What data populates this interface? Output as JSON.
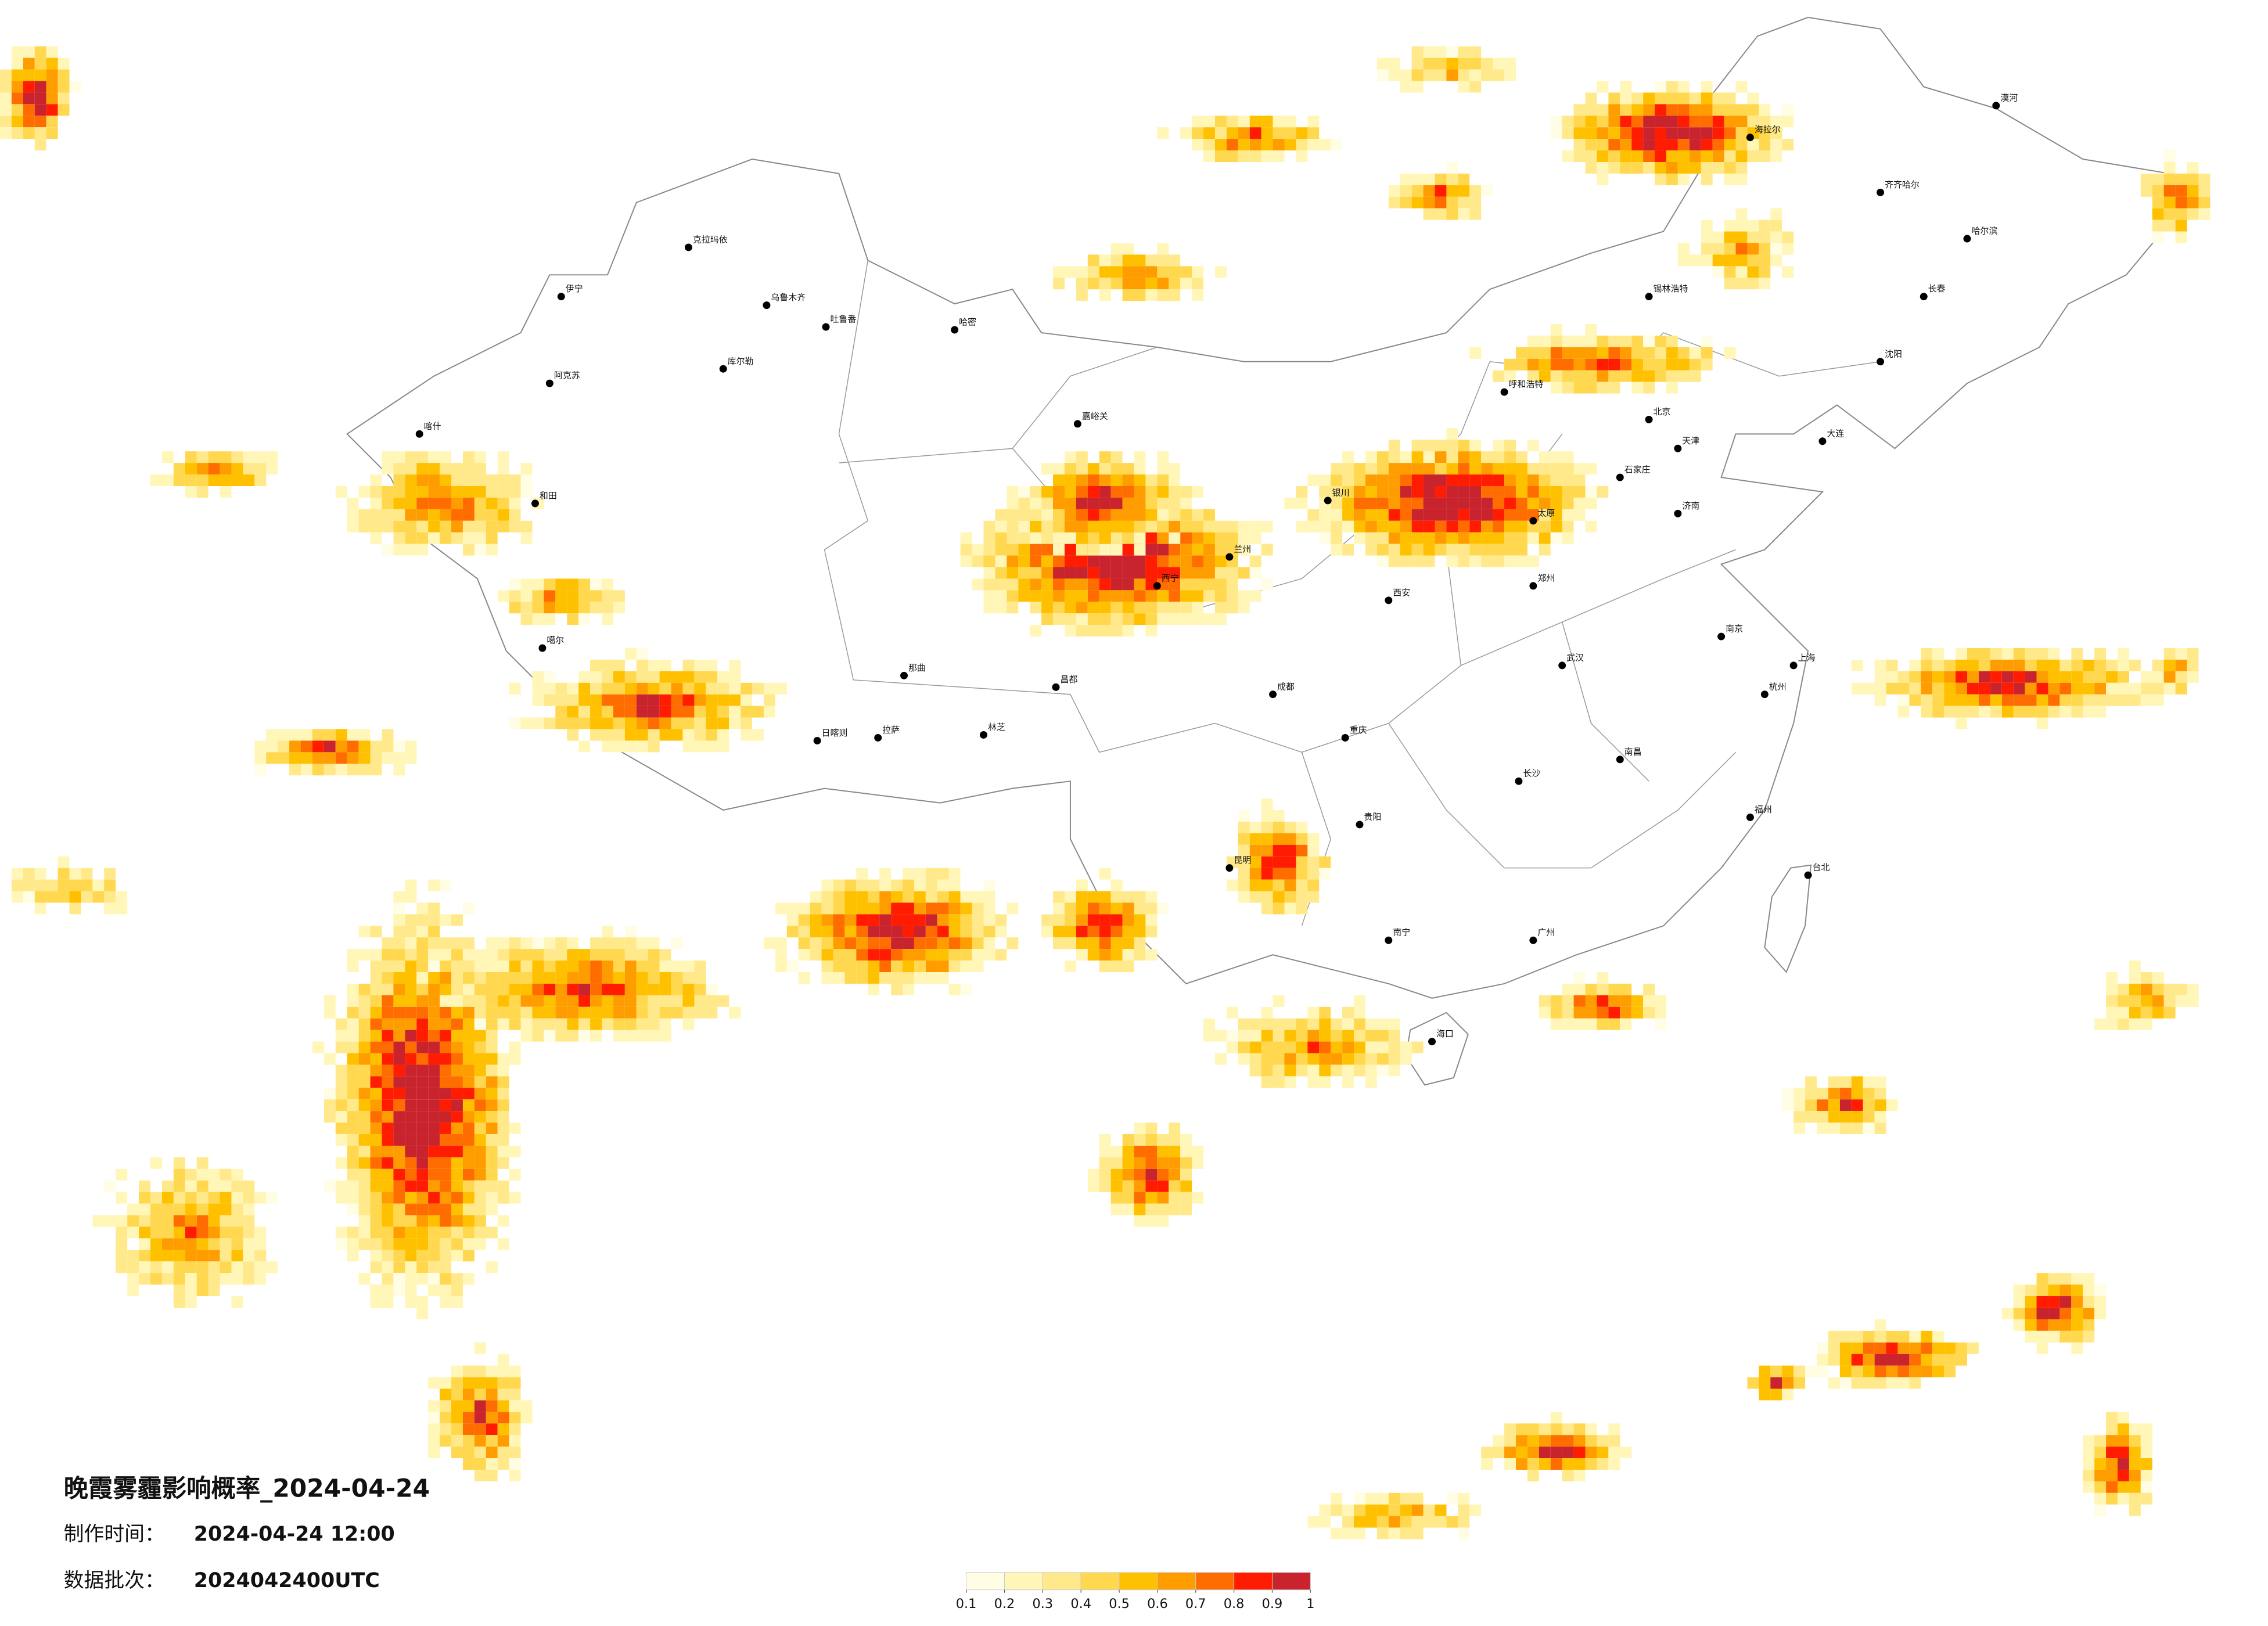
{
  "header": {
    "title": "晚霞雾霾影响概率_2024-04-24",
    "made_label": "制作时间：",
    "made_time": "2024-04-24 12:00",
    "batch_label": "数据批次：",
    "batch": "2024042400UTC"
  },
  "colorbar": {
    "range": [
      0.1,
      1
    ],
    "ticks": [
      0.1,
      0.2,
      0.3,
      0.4,
      0.5,
      0.6,
      0.7,
      0.8,
      0.9,
      1
    ],
    "colors": [
      "#fffde3",
      "#fff6b8",
      "#ffe98a",
      "#ffd84f",
      "#ffc000",
      "#ff9d00",
      "#ff6c00",
      "#ff1c00",
      "#c9242e"
    ]
  },
  "cities": [
    "克拉玛依",
    "乌鲁木齐",
    "吐鲁番",
    "哈密",
    "库尔勒",
    "阿克苏",
    "喀什",
    "和田",
    "伊宁",
    "噶尔",
    "日喀则",
    "拉萨",
    "那曲",
    "林芝",
    "昌都",
    "嘉峪关",
    "西宁",
    "兰州",
    "银川",
    "呼和浩特",
    "北京",
    "天津",
    "石家庄",
    "太原",
    "济南",
    "郑州",
    "西安",
    "成都",
    "重庆",
    "武汉",
    "南京",
    "上海",
    "杭州",
    "长沙",
    "南昌",
    "福州",
    "贵阳",
    "昆明",
    "南宁",
    "广州",
    "海口",
    "台北",
    "哈尔滨",
    "长春",
    "沈阳",
    "大连",
    "锡林浩特",
    "海拉尔",
    "齐齐哈尔",
    "漠河"
  ]
}
